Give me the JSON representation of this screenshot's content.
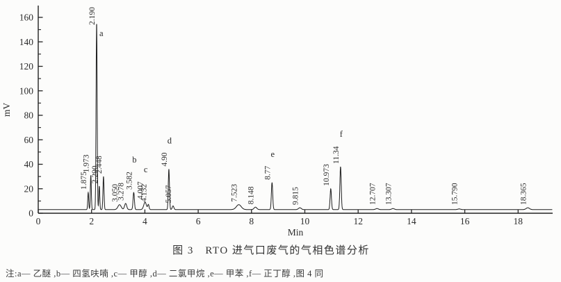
{
  "figure": {
    "caption": "图 3　RTO 进气口废气的气相色谱分析",
    "note": "注:a— 乙醚 ,b— 四氢呋喃  ,c— 甲醇 ,d— 二氯甲烷  ,e— 甲苯 ,f— 正丁醇 ,图 4 同"
  },
  "chart_data": {
    "type": "line",
    "subtype": "chromatogram",
    "title": "图 3 RTO 进气口废气的气相色谱分析",
    "xlabel": "Min",
    "ylabel": "mV",
    "xlim": [
      0,
      19.3
    ],
    "ylim": [
      0,
      170
    ],
    "x_ticks": [
      0,
      2,
      4,
      6,
      8,
      10,
      12,
      14,
      16,
      18
    ],
    "y_ticks_major": [
      0,
      20,
      40,
      60,
      80,
      100,
      120,
      140,
      160
    ],
    "y_minor_step": 10,
    "grid": false,
    "legend_position": "none",
    "baseline_mv": 3,
    "peaks": [
      {
        "rt_label": "1.875",
        "t": 1.875,
        "height_mv": 14,
        "sigma": 0.018
      },
      {
        "rt_label": "1.973",
        "t": 1.973,
        "height_mv": 28,
        "sigma": 0.018
      },
      {
        "rt_label": "2.190",
        "t": 2.19,
        "height_mv": 152,
        "sigma": 0.02,
        "letter": "a"
      },
      {
        "rt_label": "2.290",
        "t": 2.29,
        "height_mv": 19,
        "sigma": 0.018
      },
      {
        "rt_label": "2.448",
        "t": 2.448,
        "height_mv": 27,
        "sigma": 0.02
      },
      {
        "rt_label": "3.050",
        "t": 3.05,
        "height_mv": 4,
        "sigma": 0.06
      },
      {
        "rt_label": "3.278",
        "t": 3.278,
        "height_mv": 5,
        "sigma": 0.04
      },
      {
        "rt_label": "3.582",
        "t": 3.582,
        "height_mv": 14,
        "sigma": 0.025,
        "letter": "b"
      },
      {
        "rt_label": "4.007",
        "t": 4.007,
        "height_mv": 6,
        "sigma": 0.05,
        "letter": "c"
      },
      {
        "rt_label": "4.132",
        "t": 4.132,
        "height_mv": 4,
        "sigma": 0.025
      },
      {
        "rt_label": "4.90",
        "t": 4.9,
        "height_mv": 33,
        "sigma": 0.022,
        "letter": "d"
      },
      {
        "rt_label": "5.057",
        "t": 5.057,
        "height_mv": 3,
        "sigma": 0.03
      },
      {
        "rt_label": "7.523",
        "t": 7.523,
        "height_mv": 4,
        "sigma": 0.09
      },
      {
        "rt_label": "8.148",
        "t": 8.148,
        "height_mv": 2,
        "sigma": 0.05
      },
      {
        "rt_label": "8.77",
        "t": 8.77,
        "height_mv": 22,
        "sigma": 0.025,
        "letter": "e"
      },
      {
        "rt_label": "9.815",
        "t": 9.815,
        "height_mv": 1.5,
        "sigma": 0.05
      },
      {
        "rt_label": "10.973",
        "t": 10.973,
        "height_mv": 17,
        "sigma": 0.025
      },
      {
        "rt_label": "11.34",
        "t": 11.34,
        "height_mv": 35,
        "sigma": 0.025,
        "letter": "f"
      },
      {
        "rt_label": "12.707",
        "t": 12.707,
        "height_mv": 0.8,
        "sigma": 0.05
      },
      {
        "rt_label": "13.307",
        "t": 13.307,
        "height_mv": 0.8,
        "sigma": 0.05
      },
      {
        "rt_label": "15.790",
        "t": 15.79,
        "height_mv": 0.5,
        "sigma": 0.05
      },
      {
        "rt_label": "18.365",
        "t": 18.365,
        "height_mv": 1.5,
        "sigma": 0.06
      }
    ],
    "compounds": {
      "a": "乙醚",
      "b": "四氢呋喃",
      "c": "甲醇",
      "d": "二氯甲烷",
      "e": "甲苯",
      "f": "正丁醇"
    },
    "colors": {
      "trace": "#1d1d1d",
      "axis": "#222222",
      "text": "#2b2b2b"
    }
  }
}
